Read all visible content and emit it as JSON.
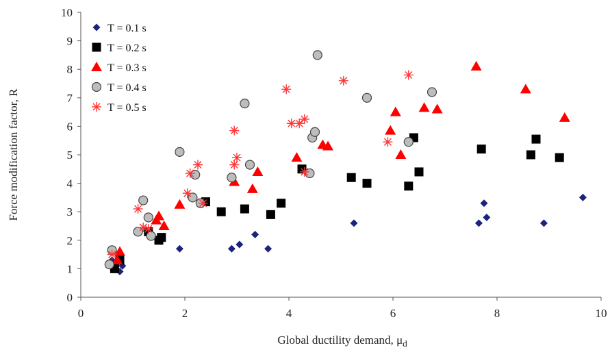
{
  "chart_data": {
    "type": "scatter",
    "xlabel": "Global ductility demand, ",
    "xlabel_symbol": "μ",
    "xlabel_subscript": "d",
    "ylabel": "Force modification factor, R",
    "xlim": [
      0,
      10
    ],
    "ylim": [
      0,
      10
    ],
    "xticks": [
      "0",
      "2",
      "4",
      "6",
      "8",
      "10"
    ],
    "yticks": [
      "0",
      "1",
      "2",
      "3",
      "4",
      "5",
      "6",
      "7",
      "8",
      "9",
      "10"
    ],
    "grid": false,
    "legend_position": "top-left",
    "series": [
      {
        "name": "T = 0.1 s",
        "marker": "diamond",
        "color": "#1a237e",
        "points": [
          [
            0.6,
            1.3
          ],
          [
            0.65,
            1.0
          ],
          [
            0.7,
            1.2
          ],
          [
            0.75,
            0.9
          ],
          [
            0.8,
            1.1
          ],
          [
            1.9,
            1.7
          ],
          [
            2.9,
            1.7
          ],
          [
            3.05,
            1.85
          ],
          [
            3.35,
            2.2
          ],
          [
            3.6,
            1.7
          ],
          [
            5.25,
            2.6
          ],
          [
            7.65,
            2.6
          ],
          [
            7.75,
            3.3
          ],
          [
            7.8,
            2.8
          ],
          [
            8.9,
            2.6
          ],
          [
            9.65,
            3.5
          ]
        ]
      },
      {
        "name": "T = 0.2 s",
        "marker": "square",
        "color": "#000000",
        "points": [
          [
            0.65,
            1.0
          ],
          [
            0.75,
            1.3
          ],
          [
            1.3,
            2.3
          ],
          [
            1.5,
            2.0
          ],
          [
            1.55,
            2.1
          ],
          [
            2.4,
            3.35
          ],
          [
            2.7,
            3.0
          ],
          [
            3.15,
            3.1
          ],
          [
            3.65,
            2.9
          ],
          [
            3.85,
            3.3
          ],
          [
            4.25,
            4.5
          ],
          [
            5.2,
            4.2
          ],
          [
            5.5,
            4.0
          ],
          [
            6.3,
            3.9
          ],
          [
            6.4,
            5.6
          ],
          [
            6.5,
            4.4
          ],
          [
            7.7,
            5.2
          ],
          [
            8.65,
            5.0
          ],
          [
            8.75,
            5.55
          ],
          [
            9.2,
            4.9
          ]
        ]
      },
      {
        "name": "T = 0.3 s",
        "marker": "triangle",
        "color": "#ff0000",
        "points": [
          [
            0.7,
            1.3
          ],
          [
            0.75,
            1.6
          ],
          [
            1.45,
            2.7
          ],
          [
            1.5,
            2.85
          ],
          [
            1.6,
            2.5
          ],
          [
            1.9,
            3.25
          ],
          [
            2.95,
            4.05
          ],
          [
            3.3,
            3.8
          ],
          [
            3.4,
            4.4
          ],
          [
            4.15,
            4.9
          ],
          [
            4.65,
            5.35
          ],
          [
            4.75,
            5.3
          ],
          [
            5.95,
            5.85
          ],
          [
            6.05,
            6.5
          ],
          [
            6.15,
            5.0
          ],
          [
            6.6,
            6.65
          ],
          [
            6.85,
            6.6
          ],
          [
            7.6,
            8.1
          ],
          [
            8.55,
            7.3
          ],
          [
            9.3,
            6.3
          ]
        ]
      },
      {
        "name": "T = 0.4 s",
        "marker": "circle",
        "color": "#bdbdbd",
        "points": [
          [
            0.55,
            1.15
          ],
          [
            0.6,
            1.65
          ],
          [
            1.1,
            2.3
          ],
          [
            1.2,
            3.4
          ],
          [
            1.3,
            2.8
          ],
          [
            1.35,
            2.15
          ],
          [
            1.9,
            5.1
          ],
          [
            2.15,
            3.5
          ],
          [
            2.2,
            4.3
          ],
          [
            2.3,
            3.3
          ],
          [
            2.9,
            4.2
          ],
          [
            3.15,
            6.8
          ],
          [
            3.25,
            4.65
          ],
          [
            4.4,
            4.35
          ],
          [
            4.45,
            5.6
          ],
          [
            4.5,
            5.8
          ],
          [
            4.55,
            8.5
          ],
          [
            5.5,
            7.0
          ],
          [
            6.3,
            5.45
          ],
          [
            6.75,
            7.2
          ]
        ]
      },
      {
        "name": "T = 0.5 s",
        "marker": "asterisk",
        "color": "#ff3333",
        "points": [
          [
            0.6,
            1.5
          ],
          [
            1.1,
            3.1
          ],
          [
            1.2,
            2.45
          ],
          [
            1.3,
            2.4
          ],
          [
            2.05,
            3.65
          ],
          [
            2.1,
            4.35
          ],
          [
            2.25,
            4.65
          ],
          [
            2.35,
            3.3
          ],
          [
            2.95,
            4.65
          ],
          [
            2.95,
            5.85
          ],
          [
            3.0,
            4.9
          ],
          [
            3.95,
            7.3
          ],
          [
            4.05,
            6.1
          ],
          [
            4.2,
            6.1
          ],
          [
            4.3,
            6.25
          ],
          [
            4.3,
            4.4
          ],
          [
            5.05,
            7.6
          ],
          [
            5.9,
            5.45
          ],
          [
            6.3,
            7.8
          ]
        ]
      }
    ]
  }
}
